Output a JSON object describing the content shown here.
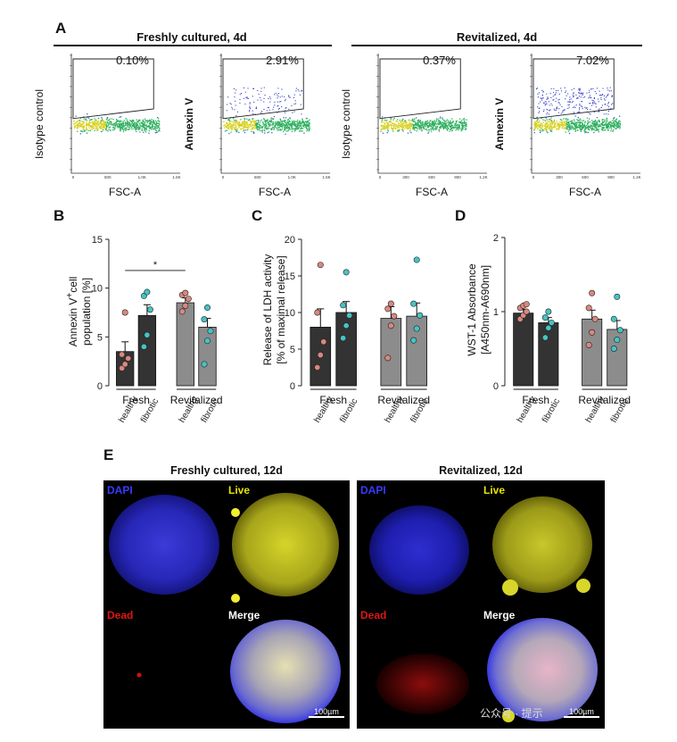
{
  "panels": {
    "a_letter": "A",
    "b_letter": "B",
    "c_letter": "C",
    "d_letter": "D",
    "e_letter": "E"
  },
  "flow": {
    "group1_title": "Freshly cultured, 4d",
    "group2_title": "Revitalized, 4d",
    "xlabel": "FSC-A",
    "plots": [
      {
        "ylabel": "Isotype control",
        "bold": false,
        "percent": "0.10%"
      },
      {
        "ylabel": "Annexin V",
        "bold": true,
        "percent": "2.91%"
      },
      {
        "ylabel": "Isotype control",
        "bold": false,
        "percent": "0.37%"
      },
      {
        "ylabel": "Annexin V",
        "bold": true,
        "percent": "7.02%"
      }
    ],
    "xticks_group1": [
      "0",
      "500",
      "1,0K",
      "1,5K"
    ],
    "xticks_group2": [
      "0",
      "300",
      "600",
      "900",
      "1,2K"
    ]
  },
  "chart_data": [
    {
      "type": "bar",
      "panel": "B",
      "ylabel_line1": "Annexin V",
      "ylabel_sup": "+",
      "ylabel_line1b": "cell",
      "ylabel_line2": "population [%]",
      "ylim": [
        0,
        15
      ],
      "yticks": [
        "0",
        "5",
        "10",
        "15"
      ],
      "group_labels": [
        "Fresh",
        "Revitalized"
      ],
      "bar_labels": [
        "healthy",
        "fibrotic",
        "healthy",
        "fibrotic"
      ],
      "bar_colors": [
        "#333333",
        "#333333",
        "#8c8c8c",
        "#8c8c8c"
      ],
      "dot_colors": [
        "#d98880",
        "#45c4c4",
        "#d98880",
        "#45c4c4"
      ],
      "values": [
        3.5,
        7.2,
        8.5,
        6.0
      ],
      "errors": [
        1.0,
        1.1,
        0.5,
        0.9
      ],
      "points": [
        [
          1.8,
          2.2,
          2.8,
          3.2,
          7.5
        ],
        [
          4.0,
          5.2,
          7.8,
          9.2,
          9.6
        ],
        [
          7.6,
          8.2,
          8.9,
          9.3,
          9.5
        ],
        [
          2.2,
          4.6,
          5.6,
          6.8,
          8.0
        ]
      ],
      "significance": {
        "label": "*",
        "from": 0,
        "to": 2,
        "y": 11.8
      }
    },
    {
      "type": "bar",
      "panel": "C",
      "ylabel_line1": "Release of LDH activity",
      "ylabel_line2": "[% of maximal release]",
      "ylim": [
        0,
        20
      ],
      "yticks": [
        "0",
        "5",
        "10",
        "15",
        "20"
      ],
      "group_labels": [
        "Fresh",
        "Revitalized"
      ],
      "bar_labels": [
        "healthy",
        "fibrotic",
        "healthy",
        "fibrotic"
      ],
      "bar_colors": [
        "#333333",
        "#333333",
        "#8c8c8c",
        "#8c8c8c"
      ],
      "dot_colors": [
        "#d98880",
        "#45c4c4",
        "#d98880",
        "#45c4c4"
      ],
      "values": [
        8.0,
        10.0,
        9.2,
        9.5
      ],
      "errors": [
        2.5,
        1.5,
        1.6,
        1.8
      ],
      "points": [
        [
          2.5,
          4.2,
          6.0,
          10.0,
          16.5
        ],
        [
          6.5,
          8.2,
          9.6,
          11.0,
          15.5
        ],
        [
          3.8,
          8.2,
          9.5,
          10.5,
          11.2
        ],
        [
          6.2,
          7.8,
          9.6,
          11.2,
          17.2
        ]
      ],
      "significance": null
    },
    {
      "type": "bar",
      "panel": "D",
      "ylabel_line1": "WST-1 Absorbance",
      "ylabel_line2": "[A450nm-A690nm]",
      "ylim": [
        0,
        2
      ],
      "yticks": [
        "0",
        "1",
        "2"
      ],
      "group_labels": [
        "Fresh",
        "Revitalized"
      ],
      "bar_labels": [
        "healthy",
        "fibrotic",
        "healthy",
        "fibrotic"
      ],
      "bar_colors": [
        "#333333",
        "#333333",
        "#8c8c8c",
        "#8c8c8c"
      ],
      "dot_colors": [
        "#d98880",
        "#45c4c4",
        "#d98880",
        "#45c4c4"
      ],
      "values": [
        0.98,
        0.85,
        0.9,
        0.76
      ],
      "errors": [
        0.05,
        0.07,
        0.12,
        0.12
      ],
      "points": [
        [
          0.9,
          0.95,
          1.0,
          1.05,
          1.08,
          1.1
        ],
        [
          0.65,
          0.78,
          0.85,
          0.92,
          1.0
        ],
        [
          0.55,
          0.72,
          0.9,
          1.05,
          1.25
        ],
        [
          0.5,
          0.62,
          0.75,
          0.9,
          1.2
        ]
      ],
      "significance": null
    }
  ],
  "micro": {
    "title_left": "Freshly cultured, 12d",
    "title_right": "Revitalized, 12d",
    "ch_dapi": "DAPI",
    "ch_live": "Live",
    "ch_dead": "Dead",
    "ch_merge": "Merge",
    "scale_left": "100µm",
    "scale_right": "100µm",
    "colors": {
      "dapi": "#3a3aff",
      "live": "#e5e500",
      "dead": "#e01515",
      "merge": "#ffffff"
    }
  },
  "watermark": "公众号 · 提示"
}
